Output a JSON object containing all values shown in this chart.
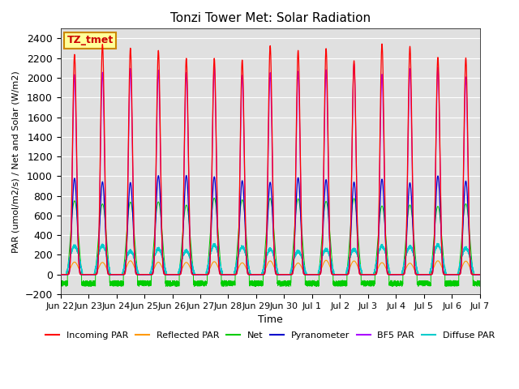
{
  "title": "Tonzi Tower Met: Solar Radiation",
  "ylabel": "PAR (umol/m2/s) / Net and Solar (W/m2)",
  "xlabel": "Time",
  "ylim": [
    -200,
    2500
  ],
  "yticks": [
    -200,
    0,
    200,
    400,
    600,
    800,
    1000,
    1200,
    1400,
    1600,
    1800,
    2000,
    2200,
    2400
  ],
  "bg_color": "#e0e0e0",
  "series_colors": {
    "incoming": "#ff0000",
    "reflected": "#ff9900",
    "net": "#00cc00",
    "pyranometer": "#0000cc",
    "bf5": "#aa00ff",
    "diffuse": "#00cccc"
  },
  "legend_labels": [
    "Incoming PAR",
    "Reflected PAR",
    "Net",
    "Pyranometer",
    "BF5 PAR",
    "Diffuse PAR"
  ],
  "legend_colors": [
    "#ff0000",
    "#ff9900",
    "#00cc00",
    "#0000cc",
    "#aa00ff",
    "#00cccc"
  ],
  "annotation_text": "TZ_tmet",
  "annotation_bg": "#ffff99",
  "annotation_border": "#cc8800",
  "n_days": 15,
  "points_per_day": 288,
  "day_labels": [
    "Jun 22",
    "Jun 23",
    "Jun 24",
    "Jun 25",
    "Jun 26",
    "Jun 27",
    "Jun 28",
    "Jun 29",
    "Jun 30",
    "Jul 1",
    "Jul 2",
    "Jul 3",
    "Jul 4",
    "Jul 5",
    "Jul 6",
    "Jul 7"
  ]
}
